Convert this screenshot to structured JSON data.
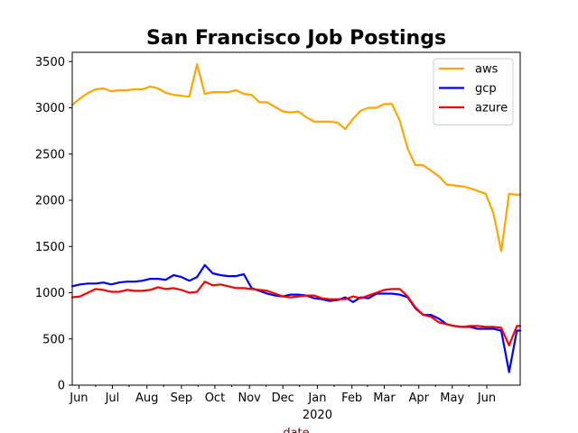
{
  "chart_data": {
    "type": "line",
    "title": "San Francisco Job Postings",
    "xlabel": "date",
    "xlabel_color": "#8b0000",
    "ylabel": "",
    "ylim": [
      0,
      3600
    ],
    "y_ticks": [
      0,
      500,
      1000,
      1500,
      2000,
      2500,
      3000,
      3500
    ],
    "x_ticks": [
      {
        "label": "Jun",
        "date": "2019-06-01"
      },
      {
        "label": "Jul",
        "date": "2019-07-01"
      },
      {
        "label": "Aug",
        "date": "2019-08-01"
      },
      {
        "label": "Sep",
        "date": "2019-09-01"
      },
      {
        "label": "Oct",
        "date": "2019-10-01"
      },
      {
        "label": "Nov",
        "date": "2019-11-01"
      },
      {
        "label": "Dec",
        "date": "2019-12-01"
      },
      {
        "label": "Jan",
        "date": "2020-01-01"
      },
      {
        "label": "Feb",
        "date": "2020-02-01"
      },
      {
        "label": "Mar",
        "date": "2020-03-01"
      },
      {
        "label": "Apr",
        "date": "2020-04-01"
      },
      {
        "label": "May",
        "date": "2020-05-01"
      },
      {
        "label": "Jun",
        "date": "2020-06-01"
      }
    ],
    "x_secondary_label": {
      "label": "2020",
      "date": "2020-01-01"
    },
    "xlim": [
      "2019-05-26",
      "2020-07-01"
    ],
    "grid": false,
    "legend_position": "top-right",
    "x": [
      "2019-05-26",
      "2019-06-02",
      "2019-06-09",
      "2019-06-16",
      "2019-06-23",
      "2019-06-30",
      "2019-07-07",
      "2019-07-14",
      "2019-07-21",
      "2019-07-28",
      "2019-08-04",
      "2019-08-11",
      "2019-08-18",
      "2019-08-25",
      "2019-09-01",
      "2019-09-08",
      "2019-09-15",
      "2019-09-22",
      "2019-09-29",
      "2019-10-06",
      "2019-10-13",
      "2019-10-20",
      "2019-10-27",
      "2019-11-03",
      "2019-11-10",
      "2019-11-17",
      "2019-11-24",
      "2019-12-01",
      "2019-12-08",
      "2019-12-15",
      "2019-12-22",
      "2019-12-29",
      "2020-01-05",
      "2020-01-12",
      "2020-01-19",
      "2020-01-26",
      "2020-02-02",
      "2020-02-09",
      "2020-02-16",
      "2020-02-23",
      "2020-03-01",
      "2020-03-08",
      "2020-03-15",
      "2020-03-22",
      "2020-03-29",
      "2020-04-05",
      "2020-04-12",
      "2020-04-19",
      "2020-04-26",
      "2020-05-03",
      "2020-05-10",
      "2020-05-17",
      "2020-05-24",
      "2020-05-31",
      "2020-06-07",
      "2020-06-14",
      "2020-06-21",
      "2020-06-28",
      "2020-07-01"
    ],
    "series": [
      {
        "name": "aws",
        "color": "#ffa500",
        "values": [
          3030,
          3100,
          3160,
          3200,
          3210,
          3180,
          3190,
          3190,
          3200,
          3200,
          3230,
          3210,
          3160,
          3140,
          3130,
          3120,
          3470,
          3150,
          3170,
          3170,
          3170,
          3190,
          3150,
          3140,
          3060,
          3060,
          3010,
          2960,
          2950,
          2960,
          2900,
          2850,
          2850,
          2850,
          2840,
          2770,
          2880,
          2970,
          3000,
          3000,
          3040,
          3040,
          2860,
          2560,
          2380,
          2380,
          2320,
          2260,
          2170,
          2160,
          2150,
          2130,
          2100,
          2070,
          1860,
          1450,
          2070,
          2060,
          2060
        ]
      },
      {
        "name": "gcp",
        "color": "#0000ff",
        "values": [
          1070,
          1090,
          1100,
          1100,
          1110,
          1090,
          1110,
          1120,
          1120,
          1130,
          1150,
          1150,
          1140,
          1190,
          1170,
          1130,
          1170,
          1300,
          1210,
          1190,
          1180,
          1180,
          1200,
          1050,
          1020,
          990,
          970,
          960,
          980,
          980,
          970,
          940,
          930,
          910,
          920,
          950,
          900,
          950,
          940,
          990,
          990,
          990,
          980,
          950,
          830,
          760,
          760,
          720,
          660,
          640,
          630,
          630,
          610,
          610,
          610,
          590,
          140,
          590,
          590
        ]
      },
      {
        "name": "azure",
        "color": "#ff0000",
        "values": [
          950,
          960,
          1000,
          1040,
          1030,
          1010,
          1010,
          1030,
          1020,
          1020,
          1030,
          1060,
          1040,
          1050,
          1030,
          1000,
          1010,
          1120,
          1080,
          1090,
          1070,
          1050,
          1050,
          1040,
          1030,
          1020,
          990,
          960,
          950,
          960,
          970,
          970,
          940,
          930,
          930,
          930,
          960,
          940,
          970,
          1000,
          1030,
          1040,
          1040,
          960,
          840,
          760,
          740,
          680,
          660,
          640,
          630,
          640,
          640,
          630,
          630,
          620,
          430,
          640,
          640
        ]
      }
    ]
  }
}
